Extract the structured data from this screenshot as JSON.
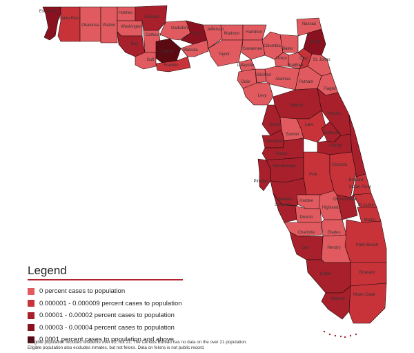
{
  "colors": {
    "level0": "#e05a5f",
    "level1": "#c8333a",
    "level2": "#a8202b",
    "level3": "#8a1220",
    "level4": "#5c0a12",
    "border": "#1a0a0a"
  },
  "legend": {
    "title": "Legend",
    "items": [
      {
        "label": "0 percent cases to population",
        "level": "level0"
      },
      {
        "label": "0.000001 - 0.000009 percent cases to population",
        "level": "level1"
      },
      {
        "label": "0.00001 - 0.00002 percent cases to population",
        "level": "level2"
      },
      {
        "label": "0.00003 - 0.00004  percent cases to population",
        "level": "level3"
      },
      {
        "label": "0.0001 percent cases to population and above",
        "level": "level4"
      }
    ]
  },
  "footnote": {
    "line1": "*Eligible population includes residents over 20, not 21. The Census Bureau has no data on the over 21 population.",
    "line2": "Eligible population also excludes inmates, but not felons. Data on felons is not public record."
  },
  "counties": [
    {
      "name": "Escambia",
      "level": "level3"
    },
    {
      "name": "Santa Rosa",
      "level": "level1"
    },
    {
      "name": "Okaloosa",
      "level": "level0"
    },
    {
      "name": "Walton",
      "level": "level0"
    },
    {
      "name": "Holmes",
      "level": "level0"
    },
    {
      "name": "Washington",
      "level": "level0"
    },
    {
      "name": "Jackson",
      "level": "level2"
    },
    {
      "name": "Bay",
      "level": "level2"
    },
    {
      "name": "Calhoun",
      "level": "level0"
    },
    {
      "name": "Gulf",
      "level": "level0"
    },
    {
      "name": "Liberty",
      "level": "level4"
    },
    {
      "name": "Gadsden",
      "level": "level0"
    },
    {
      "name": "Leon",
      "level": "level3"
    },
    {
      "name": "Franklin",
      "level": "level1"
    },
    {
      "name": "Wakulla",
      "level": "level0"
    },
    {
      "name": "Jefferson",
      "level": "level0"
    },
    {
      "name": "Madison",
      "level": "level0"
    },
    {
      "name": "Taylor",
      "level": "level0"
    },
    {
      "name": "Hamilton",
      "level": "level0"
    },
    {
      "name": "Suwannee",
      "level": "level0"
    },
    {
      "name": "Lafayette",
      "level": "level0"
    },
    {
      "name": "Dixie",
      "level": "level0"
    },
    {
      "name": "Gilchrist",
      "level": "level0"
    },
    {
      "name": "Levy",
      "level": "level0"
    },
    {
      "name": "Columbia",
      "level": "level0"
    },
    {
      "name": "Baker",
      "level": "level0"
    },
    {
      "name": "Union",
      "level": "level0"
    },
    {
      "name": "Bradford",
      "level": "level0"
    },
    {
      "name": "Alachua",
      "level": "level0"
    },
    {
      "name": "Nassau",
      "level": "level0"
    },
    {
      "name": "Duval",
      "level": "level3"
    },
    {
      "name": "Clay",
      "level": "level1"
    },
    {
      "name": "St. Johns",
      "level": "level0"
    },
    {
      "name": "Putnam",
      "level": "level0"
    },
    {
      "name": "Flagler",
      "level": "level0"
    },
    {
      "name": "Marion",
      "level": "level2"
    },
    {
      "name": "Volusia",
      "level": "level2"
    },
    {
      "name": "Citrus",
      "level": "level2"
    },
    {
      "name": "Lake",
      "level": "level1"
    },
    {
      "name": "Sumter",
      "level": "level0"
    },
    {
      "name": "Hernando",
      "level": "level2"
    },
    {
      "name": "Seminole",
      "level": "level2"
    },
    {
      "name": "Orange",
      "level": "level2"
    },
    {
      "name": "Pasco",
      "level": "level2"
    },
    {
      "name": "Hillsborough",
      "level": "level2"
    },
    {
      "name": "Pinellas",
      "level": "level2"
    },
    {
      "name": "Polk",
      "level": "level1"
    },
    {
      "name": "Osceola",
      "level": "level1"
    },
    {
      "name": "Brevard",
      "level": "level2"
    },
    {
      "name": "Indian River",
      "level": "level1"
    },
    {
      "name": "Manatee",
      "level": "level2"
    },
    {
      "name": "Hardee",
      "level": "level0"
    },
    {
      "name": "Highlands",
      "level": "level0"
    },
    {
      "name": "Okeechobee",
      "level": "level2"
    },
    {
      "name": "St. Lucie",
      "level": "level1"
    },
    {
      "name": "Martin",
      "level": "level1"
    },
    {
      "name": "Sarasota",
      "level": "level2"
    },
    {
      "name": "Desoto",
      "level": "level0"
    },
    {
      "name": "Charlotte",
      "level": "level0"
    },
    {
      "name": "Glades",
      "level": "level0"
    },
    {
      "name": "Palm Beach",
      "level": "level1"
    },
    {
      "name": "Lee",
      "level": "level2"
    },
    {
      "name": "Hendry",
      "level": "level0"
    },
    {
      "name": "Collier",
      "level": "level2"
    },
    {
      "name": "Broward",
      "level": "level1"
    },
    {
      "name": "Monroe",
      "level": "level2"
    },
    {
      "name": "Miami Dade",
      "level": "level1"
    }
  ]
}
